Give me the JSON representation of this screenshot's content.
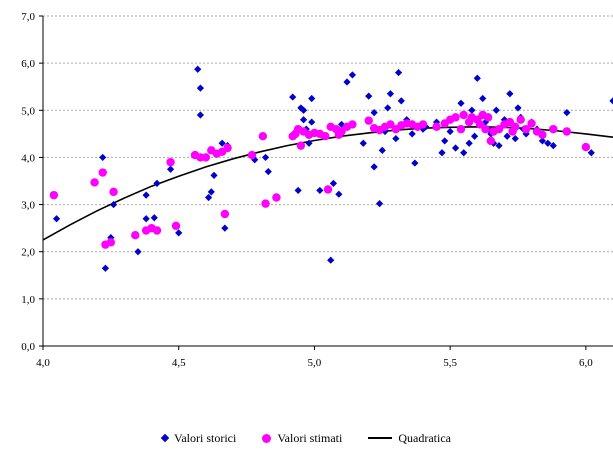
{
  "chart_data": {
    "type": "scatter",
    "xlim": [
      4.0,
      6.1
    ],
    "ylim": [
      0.0,
      7.0
    ],
    "x_ticks": [
      "4,0",
      "4,5",
      "5,0",
      "5,5",
      "6,0"
    ],
    "y_ticks": [
      "0,0",
      "1,0",
      "2,0",
      "3,0",
      "4,0",
      "5,0",
      "6,0",
      "7,0"
    ],
    "grid": "horizontal dashed",
    "legend_position": "bottom",
    "series": [
      {
        "name": "Valori storici",
        "marker": "diamond",
        "color": "#0000cc",
        "points": [
          [
            4.05,
            2.7
          ],
          [
            4.22,
            4.0
          ],
          [
            4.23,
            1.65
          ],
          [
            4.25,
            2.3
          ],
          [
            4.26,
            3.0
          ],
          [
            4.35,
            2.0
          ],
          [
            4.38,
            2.7
          ],
          [
            4.38,
            3.2
          ],
          [
            4.41,
            2.72
          ],
          [
            4.42,
            3.45
          ],
          [
            4.47,
            3.75
          ],
          [
            4.5,
            2.4
          ],
          [
            4.57,
            5.87
          ],
          [
            4.58,
            5.47
          ],
          [
            4.58,
            4.9
          ],
          [
            4.61,
            3.15
          ],
          [
            4.62,
            3.27
          ],
          [
            4.63,
            3.62
          ],
          [
            4.66,
            4.3
          ],
          [
            4.67,
            2.5
          ],
          [
            4.68,
            4.25
          ],
          [
            4.78,
            3.95
          ],
          [
            4.82,
            4.0
          ],
          [
            4.83,
            3.7
          ],
          [
            4.92,
            5.28
          ],
          [
            4.94,
            3.3
          ],
          [
            4.95,
            5.05
          ],
          [
            4.96,
            4.8
          ],
          [
            4.96,
            5.0
          ],
          [
            4.97,
            4.6
          ],
          [
            4.98,
            4.3
          ],
          [
            4.99,
            5.25
          ],
          [
            4.99,
            4.75
          ],
          [
            5.02,
            3.3
          ],
          [
            5.05,
            3.32
          ],
          [
            5.06,
            1.82
          ],
          [
            5.07,
            3.45
          ],
          [
            5.09,
            3.22
          ],
          [
            5.1,
            4.7
          ],
          [
            5.12,
            5.6
          ],
          [
            5.14,
            5.75
          ],
          [
            5.18,
            4.3
          ],
          [
            5.2,
            5.3
          ],
          [
            5.22,
            3.8
          ],
          [
            5.22,
            4.95
          ],
          [
            5.24,
            3.02
          ],
          [
            5.25,
            4.15
          ],
          [
            5.26,
            4.55
          ],
          [
            5.27,
            5.05
          ],
          [
            5.28,
            5.35
          ],
          [
            5.3,
            4.4
          ],
          [
            5.31,
            5.8
          ],
          [
            5.32,
            5.2
          ],
          [
            5.34,
            4.8
          ],
          [
            5.36,
            4.5
          ],
          [
            5.37,
            3.88
          ],
          [
            5.4,
            4.6
          ],
          [
            5.41,
            4.65
          ],
          [
            5.45,
            4.75
          ],
          [
            5.47,
            4.1
          ],
          [
            5.48,
            4.35
          ],
          [
            5.5,
            4.55
          ],
          [
            5.52,
            4.2
          ],
          [
            5.54,
            5.15
          ],
          [
            5.55,
            4.1
          ],
          [
            5.57,
            4.3
          ],
          [
            5.58,
            5.0
          ],
          [
            5.59,
            4.45
          ],
          [
            5.6,
            5.68
          ],
          [
            5.61,
            4.85
          ],
          [
            5.62,
            5.25
          ],
          [
            5.63,
            4.75
          ],
          [
            5.64,
            4.6
          ],
          [
            5.65,
            4.5
          ],
          [
            5.66,
            4.3
          ],
          [
            5.67,
            5.0
          ],
          [
            5.68,
            4.25
          ],
          [
            5.7,
            4.8
          ],
          [
            5.71,
            4.45
          ],
          [
            5.72,
            5.35
          ],
          [
            5.73,
            4.7
          ],
          [
            5.74,
            4.4
          ],
          [
            5.75,
            5.05
          ],
          [
            5.76,
            4.85
          ],
          [
            5.77,
            4.6
          ],
          [
            5.78,
            4.5
          ],
          [
            5.8,
            4.75
          ],
          [
            5.82,
            4.6
          ],
          [
            5.84,
            4.35
          ],
          [
            5.86,
            4.3
          ],
          [
            5.88,
            4.25
          ],
          [
            5.93,
            4.95
          ],
          [
            6.02,
            4.1
          ],
          [
            6.1,
            5.2
          ]
        ]
      },
      {
        "name": "Valori stimati",
        "marker": "circle",
        "color": "#ff00ff",
        "points": [
          [
            4.04,
            3.2
          ],
          [
            4.19,
            3.47
          ],
          [
            4.22,
            3.68
          ],
          [
            4.23,
            2.15
          ],
          [
            4.25,
            2.2
          ],
          [
            4.26,
            3.27
          ],
          [
            4.34,
            2.35
          ],
          [
            4.38,
            2.45
          ],
          [
            4.4,
            2.5
          ],
          [
            4.42,
            2.45
          ],
          [
            4.47,
            3.9
          ],
          [
            4.49,
            2.55
          ],
          [
            4.56,
            4.05
          ],
          [
            4.58,
            4.0
          ],
          [
            4.6,
            4.0
          ],
          [
            4.62,
            4.15
          ],
          [
            4.64,
            4.08
          ],
          [
            4.66,
            4.12
          ],
          [
            4.67,
            2.8
          ],
          [
            4.68,
            4.2
          ],
          [
            4.77,
            4.05
          ],
          [
            4.81,
            4.45
          ],
          [
            4.82,
            3.02
          ],
          [
            4.86,
            3.15
          ],
          [
            4.92,
            4.45
          ],
          [
            4.93,
            4.5
          ],
          [
            4.94,
            4.6
          ],
          [
            4.95,
            4.25
          ],
          [
            4.96,
            4.55
          ],
          [
            4.98,
            4.48
          ],
          [
            5.0,
            4.52
          ],
          [
            5.02,
            4.5
          ],
          [
            5.04,
            4.45
          ],
          [
            5.05,
            3.32
          ],
          [
            5.06,
            4.65
          ],
          [
            5.08,
            4.6
          ],
          [
            5.09,
            4.48
          ],
          [
            5.1,
            4.55
          ],
          [
            5.12,
            4.65
          ],
          [
            5.14,
            4.7
          ],
          [
            5.2,
            4.78
          ],
          [
            5.22,
            4.62
          ],
          [
            5.24,
            4.58
          ],
          [
            5.26,
            4.65
          ],
          [
            5.28,
            4.7
          ],
          [
            5.3,
            4.6
          ],
          [
            5.32,
            4.68
          ],
          [
            5.34,
            4.72
          ],
          [
            5.36,
            4.7
          ],
          [
            5.38,
            4.65
          ],
          [
            5.4,
            4.7
          ],
          [
            5.45,
            4.65
          ],
          [
            5.48,
            4.72
          ],
          [
            5.5,
            4.8
          ],
          [
            5.52,
            4.85
          ],
          [
            5.54,
            4.6
          ],
          [
            5.55,
            4.9
          ],
          [
            5.57,
            4.75
          ],
          [
            5.58,
            4.85
          ],
          [
            5.6,
            4.8
          ],
          [
            5.61,
            4.7
          ],
          [
            5.62,
            4.9
          ],
          [
            5.63,
            4.6
          ],
          [
            5.64,
            4.85
          ],
          [
            5.65,
            4.35
          ],
          [
            5.66,
            4.55
          ],
          [
            5.68,
            4.6
          ],
          [
            5.7,
            4.7
          ],
          [
            5.72,
            4.75
          ],
          [
            5.73,
            4.55
          ],
          [
            5.74,
            4.65
          ],
          [
            5.76,
            4.8
          ],
          [
            5.78,
            4.6
          ],
          [
            5.8,
            4.72
          ],
          [
            5.82,
            4.55
          ],
          [
            5.84,
            4.48
          ],
          [
            5.88,
            4.6
          ],
          [
            5.93,
            4.55
          ],
          [
            6.0,
            4.22
          ]
        ]
      },
      {
        "name": "Quadratica",
        "type": "line",
        "color": "#000000",
        "points": [
          [
            4.0,
            2.25
          ],
          [
            4.1,
            2.57
          ],
          [
            4.2,
            2.87
          ],
          [
            4.3,
            3.14
          ],
          [
            4.4,
            3.39
          ],
          [
            4.5,
            3.6
          ],
          [
            4.6,
            3.8
          ],
          [
            4.7,
            3.97
          ],
          [
            4.8,
            4.12
          ],
          [
            4.9,
            4.25
          ],
          [
            5.0,
            4.36
          ],
          [
            5.1,
            4.45
          ],
          [
            5.2,
            4.52
          ],
          [
            5.3,
            4.58
          ],
          [
            5.4,
            4.62
          ],
          [
            5.5,
            4.64
          ],
          [
            5.6,
            4.65
          ],
          [
            5.7,
            4.64
          ],
          [
            5.8,
            4.61
          ],
          [
            5.9,
            4.56
          ],
          [
            6.0,
            4.5
          ],
          [
            6.1,
            4.43
          ]
        ]
      }
    ]
  }
}
